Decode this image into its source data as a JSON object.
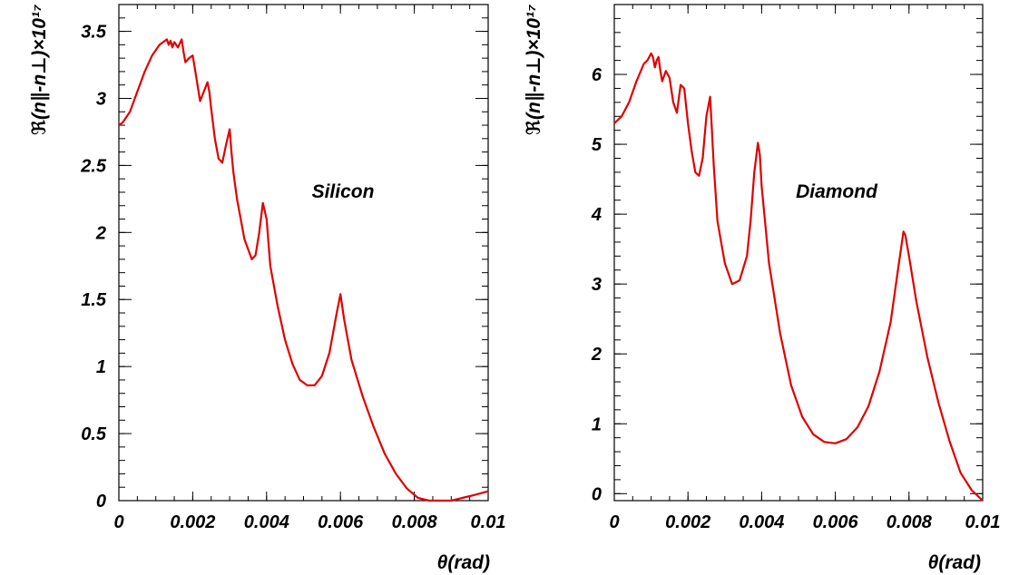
{
  "chart_data": [
    {
      "type": "line",
      "annotation": "Silicon",
      "xlabel": "θ(rad)",
      "ylabel": "ℜ(n∥-n⊥)×10¹⁷",
      "xlim": [
        0,
        0.01
      ],
      "ylim": [
        0,
        3.7
      ],
      "x_ticks": [
        "0",
        "0.002",
        "0.004",
        "0.006",
        "0.008",
        "0.01"
      ],
      "y_ticks": [
        "0",
        "0.5",
        "1",
        "1.5",
        "2",
        "2.5",
        "3",
        "3.5"
      ],
      "line_color": "#e00000",
      "series": [
        {
          "x": [
            0,
            0.0001,
            0.0003,
            0.0005,
            0.0007,
            0.0009,
            0.0011,
            0.0013,
            0.00135,
            0.0014,
            0.00145,
            0.0015,
            0.0016,
            0.0017,
            0.00175,
            0.0018,
            0.0019,
            0.002,
            0.0021,
            0.0022,
            0.0023,
            0.0024,
            0.00245,
            0.0025,
            0.0026,
            0.0027,
            0.0028,
            0.0029,
            0.003,
            0.00305,
            0.0031,
            0.0032,
            0.0034,
            0.0036,
            0.0037,
            0.0038,
            0.0039,
            0.004,
            0.0041,
            0.0043,
            0.0045,
            0.0047,
            0.0049,
            0.0051,
            0.0053,
            0.0055,
            0.0057,
            0.0059,
            0.006,
            0.0061,
            0.0063,
            0.0066,
            0.0069,
            0.0072,
            0.0075,
            0.0078,
            0.0081,
            0.0084,
            0.0087,
            0.009,
            0.0093,
            0.0096,
            0.01
          ],
          "y": [
            2.8,
            2.82,
            2.9,
            3.05,
            3.2,
            3.32,
            3.4,
            3.44,
            3.4,
            3.43,
            3.38,
            3.42,
            3.38,
            3.44,
            3.35,
            3.27,
            3.3,
            3.32,
            3.15,
            2.98,
            3.05,
            3.12,
            3.05,
            2.92,
            2.7,
            2.55,
            2.52,
            2.65,
            2.77,
            2.6,
            2.45,
            2.25,
            1.95,
            1.8,
            1.83,
            2.0,
            2.22,
            2.1,
            1.75,
            1.45,
            1.2,
            1.02,
            0.9,
            0.86,
            0.86,
            0.93,
            1.1,
            1.4,
            1.54,
            1.35,
            1.05,
            0.78,
            0.55,
            0.35,
            0.2,
            0.09,
            0.02,
            0.0,
            0.0,
            0.0,
            0.02,
            0.04,
            0.07
          ]
        }
      ]
    },
    {
      "type": "line",
      "annotation": "Diamond",
      "xlabel": "θ(rad)",
      "ylabel": "ℜ(n∥-n⊥)×10¹⁷",
      "xlim": [
        0,
        0.01
      ],
      "ylim": [
        -0.1,
        7.0
      ],
      "x_ticks": [
        "0",
        "0.002",
        "0.004",
        "0.006",
        "0.008",
        "0.01"
      ],
      "y_ticks": [
        "0",
        "1",
        "2",
        "3",
        "4",
        "5",
        "6"
      ],
      "line_color": "#e00000",
      "series": [
        {
          "x": [
            0,
            0.0002,
            0.0004,
            0.0006,
            0.0008,
            0.0009,
            0.001,
            0.00105,
            0.0011,
            0.00115,
            0.0012,
            0.00125,
            0.0013,
            0.0014,
            0.0015,
            0.0016,
            0.0017,
            0.0018,
            0.0019,
            0.002,
            0.0021,
            0.0022,
            0.0023,
            0.0024,
            0.0025,
            0.0026,
            0.00265,
            0.0027,
            0.0028,
            0.003,
            0.0032,
            0.0034,
            0.0036,
            0.0037,
            0.0038,
            0.0039,
            0.00395,
            0.004,
            0.0042,
            0.0045,
            0.0048,
            0.0051,
            0.0054,
            0.0057,
            0.006,
            0.0063,
            0.0066,
            0.0069,
            0.0072,
            0.0075,
            0.0077,
            0.00785,
            0.0079,
            0.008,
            0.0082,
            0.0085,
            0.0088,
            0.0091,
            0.0094,
            0.0097,
            0.01
          ],
          "y": [
            5.3,
            5.4,
            5.6,
            5.9,
            6.15,
            6.2,
            6.3,
            6.25,
            6.1,
            6.2,
            6.25,
            6.05,
            5.9,
            6.05,
            5.95,
            5.6,
            5.45,
            5.85,
            5.8,
            5.3,
            4.9,
            4.6,
            4.55,
            4.8,
            5.4,
            5.68,
            5.2,
            4.7,
            3.9,
            3.3,
            3.0,
            3.05,
            3.4,
            3.9,
            4.6,
            5.02,
            4.85,
            4.4,
            3.3,
            2.3,
            1.55,
            1.1,
            0.85,
            0.74,
            0.72,
            0.78,
            0.95,
            1.25,
            1.75,
            2.45,
            3.2,
            3.75,
            3.7,
            3.4,
            2.75,
            1.95,
            1.3,
            0.75,
            0.3,
            0.05,
            -0.1
          ]
        }
      ]
    }
  ]
}
